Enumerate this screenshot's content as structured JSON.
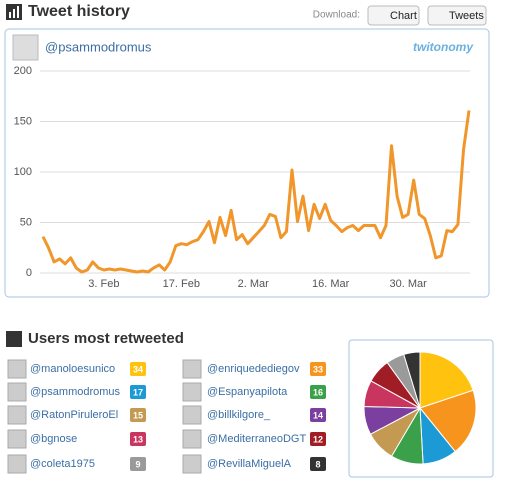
{
  "toolbar": {
    "download_label": "Download:",
    "buttons": [
      "Chart",
      "Tweets"
    ]
  },
  "chart_data": [
    {
      "type": "line",
      "title": "Tweet history",
      "account": "@psammodromus",
      "brand": "twitonomy",
      "categories": [
        null,
        null,
        null,
        null,
        null,
        null,
        null,
        null,
        null,
        null,
        null,
        "3. Feb",
        null,
        null,
        null,
        null,
        null,
        null,
        null,
        null,
        null,
        null,
        null,
        null,
        null,
        "17. Feb",
        null,
        null,
        null,
        null,
        null,
        null,
        null,
        null,
        null,
        null,
        null,
        null,
        "2. Mar",
        null,
        null,
        null,
        null,
        null,
        null,
        null,
        null,
        null,
        null,
        null,
        null,
        null,
        "16. Mar",
        null,
        null,
        null,
        null,
        null,
        null,
        null,
        null,
        null,
        null,
        null,
        null,
        null,
        "30. Mar",
        null,
        null,
        null,
        null,
        null,
        null,
        null,
        null,
        null,
        null,
        null
      ],
      "values": [
        36,
        25,
        11,
        14,
        9,
        15,
        5,
        1,
        3,
        11,
        5,
        3,
        4,
        3,
        4,
        3,
        2,
        1,
        2,
        1,
        5,
        8,
        3,
        11,
        27,
        29,
        28,
        31,
        33,
        41,
        51,
        30,
        55,
        37,
        62,
        33,
        38,
        29,
        35,
        41,
        47,
        58,
        56,
        35,
        41,
        102,
        51,
        76,
        42,
        68,
        54,
        68,
        52,
        47,
        41,
        45,
        47,
        42,
        47,
        47,
        47,
        35,
        47,
        126,
        76,
        55,
        58,
        92,
        58,
        54,
        37,
        15,
        17,
        42,
        41,
        48,
        122,
        161
      ],
      "color": "#f0962a",
      "ylim": [
        0,
        200
      ],
      "yticks": [
        0,
        50,
        100,
        150,
        200
      ],
      "grid": true
    },
    {
      "type": "pie",
      "title": "Users most retweeted",
      "categories": [
        "@manoloesunico",
        "@enriquedediegov",
        "@psammodromus",
        "@Espanyapilota",
        "@RatonPiruleroEl",
        "@billkilgore_",
        "@bgnose",
        "@MediterraneoDGT",
        "@coleta1975",
        "@RevillaMiguelA"
      ],
      "values": [
        34,
        33,
        17,
        16,
        15,
        14,
        13,
        12,
        9,
        8
      ],
      "colors": [
        "#ffc20e",
        "#f7941d",
        "#1b9ad6",
        "#3aa14a",
        "#c49a52",
        "#7b3fa0",
        "#c8355e",
        "#a01d25",
        "#9a9a9a",
        "#333333"
      ]
    }
  ]
}
